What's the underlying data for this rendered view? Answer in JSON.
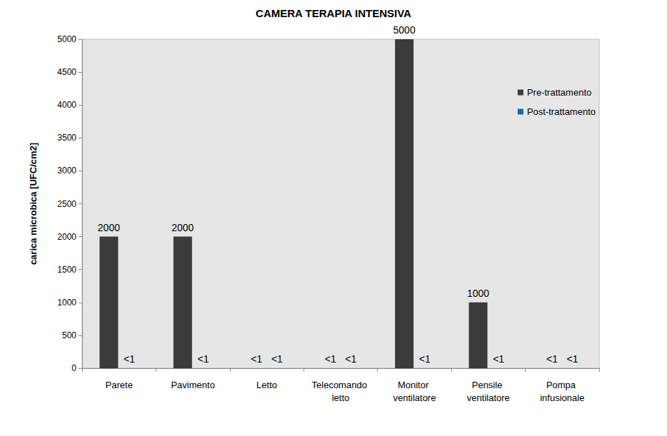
{
  "chart_data": {
    "type": "bar",
    "title": "CAMERA TERAPIA INTENSIVA",
    "y_label": "carica microbica [UFC/cm2]",
    "categories": [
      "Parete",
      "Pavimento",
      "Letto",
      "Telecomando letto",
      "Monitor ventilatore",
      "Pensile ventilatore",
      "Pompa infusionale"
    ],
    "series": [
      {
        "name": "Pre-trattamento",
        "color": "#3b3b3b",
        "values": [
          2000,
          2000,
          0,
          0,
          5000,
          1000,
          0
        ],
        "value_labels": [
          "2000",
          "2000",
          "<1",
          "<1",
          "5000",
          "1000",
          "<1"
        ]
      },
      {
        "name": "Post-trattamento",
        "color": "#0a6cb4",
        "values": [
          0,
          0,
          0,
          0,
          0,
          0,
          0
        ],
        "value_labels": [
          "<1",
          "<1",
          "<1",
          "<1",
          "<1",
          "<1",
          "<1"
        ]
      }
    ],
    "ylim": [
      0,
      5000
    ],
    "yticks": [
      0,
      500,
      1000,
      1500,
      2000,
      2500,
      3000,
      3500,
      4000,
      4500,
      5000
    ],
    "grid": false,
    "legend": "top-right",
    "data_labels": true
  }
}
